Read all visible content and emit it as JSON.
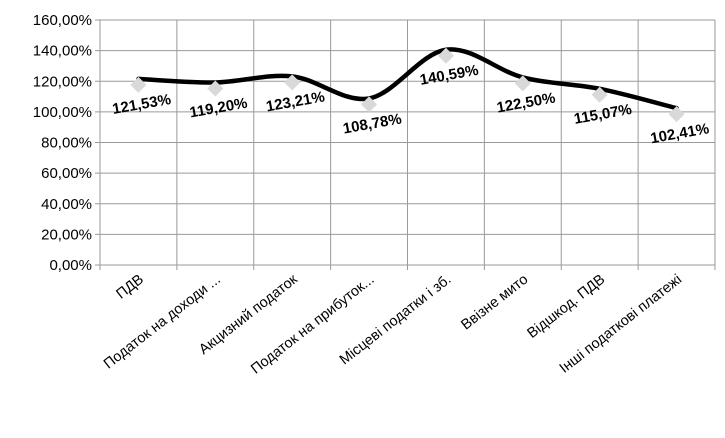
{
  "chart_data": {
    "type": "line",
    "categories": [
      "ПДВ",
      "Податок на доходи ...",
      "Акцизний податок",
      "Податок на прибуток...",
      "Місцеві податки і зб.",
      "Ввізне мито",
      "Відшкод. ПДВ",
      "Інші податкові платежі"
    ],
    "values": [
      121.53,
      119.2,
      123.21,
      108.78,
      140.59,
      122.5,
      115.07,
      102.41
    ],
    "data_labels": [
      "121,53%",
      "119,20%",
      "123,21%",
      "108,78%",
      "140,59%",
      "122,50%",
      "115,07%",
      "102,41%"
    ],
    "ylim": [
      0,
      160
    ],
    "yticks": [
      "0,00%",
      "20,00%",
      "40,00%",
      "60,00%",
      "80,00%",
      "100,00%",
      "120,00%",
      "140,00%",
      "160,00%"
    ],
    "title": "",
    "xlabel": "",
    "ylabel": "",
    "grid": true,
    "line_color": "#000000",
    "marker_color": "#d9d9d9",
    "grid_color": "#9a9a9a"
  }
}
